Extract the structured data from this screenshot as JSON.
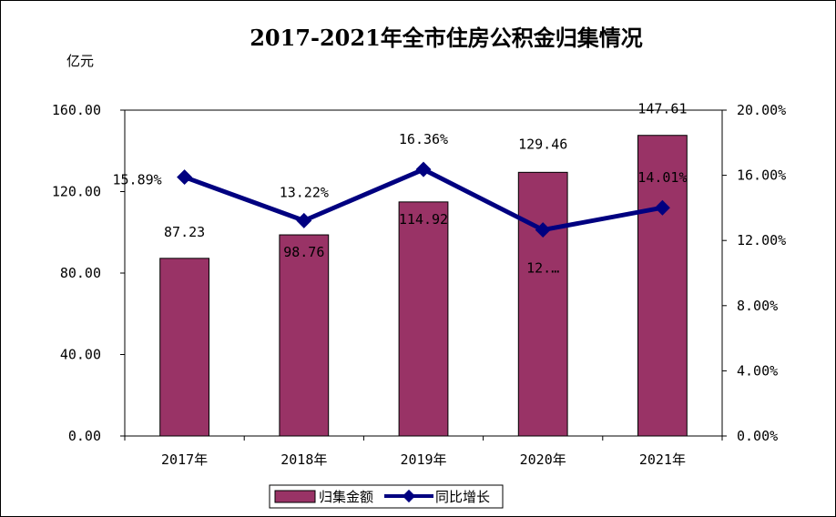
{
  "chart_data": {
    "type": "bar",
    "title": "2017-2021年全市住房公积金归集情况",
    "unit_label": "亿元",
    "categories": [
      "2017年",
      "2018年",
      "2019年",
      "2020年",
      "2021年"
    ],
    "series": [
      {
        "name": "归集金额",
        "type": "bar",
        "axis": "left",
        "values": [
          87.23,
          98.76,
          114.92,
          129.46,
          147.61
        ],
        "labels": [
          "87.23",
          "98.76",
          "114.92",
          "129.46",
          "147.61"
        ],
        "color": "#993366"
      },
      {
        "name": "同比增长",
        "type": "line",
        "axis": "right",
        "values": [
          15.89,
          13.22,
          16.36,
          12.65,
          14.01
        ],
        "labels": [
          "15.89%",
          "13.22%",
          "16.36%",
          "12.…",
          "14.01%"
        ],
        "color": "#000080"
      }
    ],
    "y_left": {
      "ylim": [
        0,
        160
      ],
      "ticks": [
        "0.00",
        "40.00",
        "80.00",
        "120.00",
        "160.00"
      ]
    },
    "y_right": {
      "ylim": [
        0,
        20
      ],
      "ticks": [
        "0.00%",
        "4.00%",
        "8.00%",
        "12.00%",
        "16.00%",
        "20.00%"
      ]
    },
    "legend_position": "bottom",
    "grid": false
  }
}
